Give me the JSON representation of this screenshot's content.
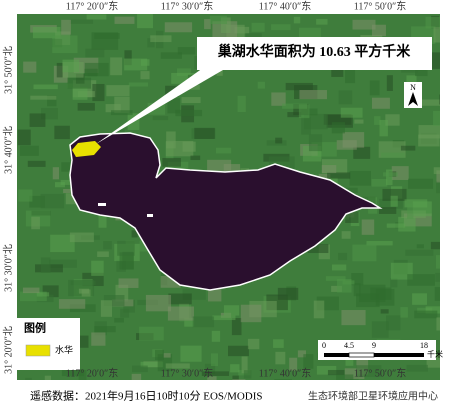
{
  "map": {
    "axis_labels": {
      "top": [
        "117° 20′0″东",
        "117° 30′0″东",
        "117° 40′0″东",
        "117° 50′0″东"
      ],
      "bottom": [
        "117° 20′0″东",
        "117° 30′0″东",
        "117° 40′0″东",
        "117° 50′0″东"
      ],
      "left": [
        "31° 50′0″北",
        "31° 40′0″北",
        "31° 30′0″北",
        "31° 20′0″北"
      ]
    },
    "callout": "巢湖水华面积为 10.63 平方千米",
    "legend": {
      "title": "图例",
      "items": [
        "水华"
      ]
    },
    "north": "N",
    "scale_bar": {
      "ticks": [
        "0",
        "4.5",
        "9",
        "18"
      ],
      "unit": "千米"
    },
    "footer": {
      "source": "遥感数据：2021年9月16日10时10分   EOS/MODIS",
      "agency": "生态环境部卫星环境应用中心"
    }
  }
}
